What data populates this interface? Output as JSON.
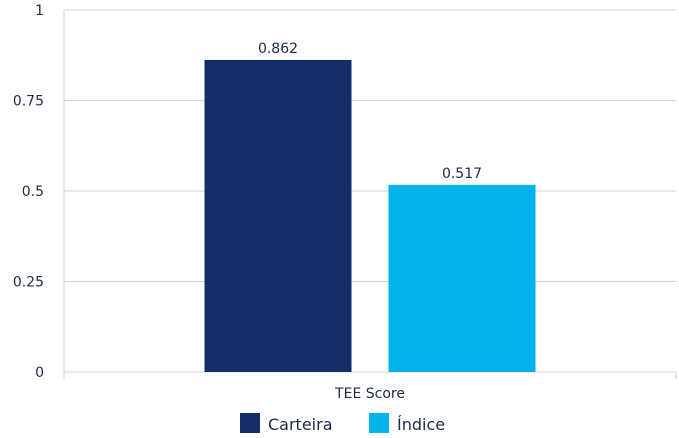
{
  "chart_data": {
    "type": "bar",
    "categories": [
      "TEE Score"
    ],
    "series": [
      {
        "name": "Carteira",
        "values": [
          0.862
        ],
        "color": "#142f68"
      },
      {
        "name": "Índice",
        "values": [
          0.517
        ],
        "color": "#00b4eb"
      }
    ],
    "ylim": [
      0,
      1
    ],
    "yticks": [
      {
        "value": 0,
        "label": "0"
      },
      {
        "value": 0.25,
        "label": "0.25"
      },
      {
        "value": 0.5,
        "label": "0.5"
      },
      {
        "value": 0.75,
        "label": "0.75"
      },
      {
        "value": 1,
        "label": "1"
      }
    ],
    "data_labels": [
      "0.862",
      "0.517"
    ],
    "grid": true,
    "legend_position": "bottom"
  }
}
